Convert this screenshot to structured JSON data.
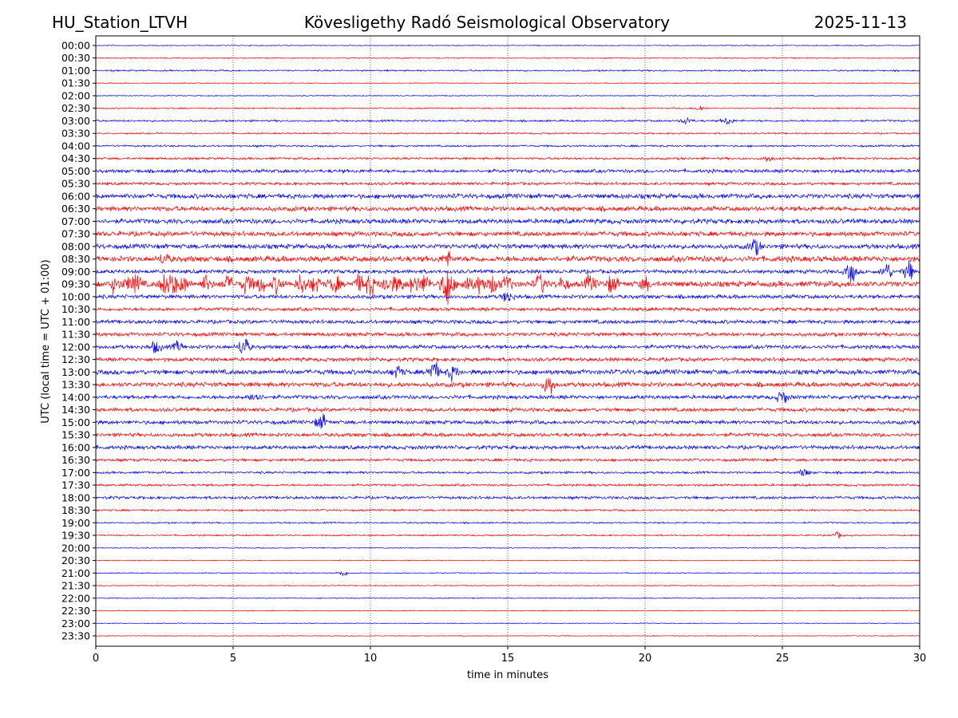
{
  "header": {
    "station": "HU_Station_LTVH",
    "title": "Kövesligethy Radó Seismological Observatory",
    "date": "2025-11-13"
  },
  "chart_data": {
    "type": "line",
    "title": "Kövesligethy Radó Seismological Observatory",
    "xlabel": "time in minutes",
    "ylabel": "UTC (local time = UTC + 01:00)",
    "xlim": [
      0,
      30
    ],
    "xticks": [
      "0",
      "5",
      "10",
      "15",
      "20",
      "25",
      "30"
    ],
    "grid": "vertical dotted at 5-minute ticks",
    "colors": [
      "#0000ff",
      "#ff0000"
    ],
    "rows": [
      "00:00",
      "00:30",
      "01:00",
      "01:30",
      "02:00",
      "02:30",
      "03:00",
      "03:30",
      "04:00",
      "04:30",
      "05:00",
      "05:30",
      "06:00",
      "06:30",
      "07:00",
      "07:30",
      "08:00",
      "08:30",
      "09:00",
      "09:30",
      "10:00",
      "10:30",
      "11:00",
      "11:30",
      "12:00",
      "12:30",
      "13:00",
      "13:30",
      "14:00",
      "14:30",
      "15:00",
      "15:30",
      "16:00",
      "16:30",
      "17:00",
      "17:30",
      "18:00",
      "18:30",
      "19:00",
      "19:30",
      "20:00",
      "20:30",
      "21:00",
      "21:30",
      "22:00",
      "22:30",
      "23:00",
      "23:30"
    ],
    "noise_level": [
      0.5,
      0.6,
      0.8,
      0.5,
      0.5,
      0.7,
      1,
      0.8,
      1,
      1.2,
      1.8,
      1.5,
      2.5,
      2.5,
      2.5,
      2.5,
      2.5,
      3,
      2,
      3,
      2,
      1.8,
      2,
      2,
      2,
      2,
      2.5,
      2.5,
      2,
      2,
      2,
      2,
      2,
      1.5,
      1.2,
      1.2,
      1.5,
      1,
      0.8,
      0.8,
      0.5,
      0.5,
      0.5,
      0.5,
      0.5,
      0.5,
      0.4,
      0.4
    ],
    "events": {
      "02:30": [
        [
          22,
          3
        ]
      ],
      "03:00": [
        [
          21.5,
          4
        ],
        [
          23,
          4
        ]
      ],
      "04:30": [
        [
          24.5,
          3
        ]
      ],
      "08:00": [
        [
          24,
          8
        ]
      ],
      "08:30": [
        [
          2.5,
          5
        ],
        [
          12.8,
          6
        ]
      ],
      "09:00": [
        [
          27.5,
          10
        ],
        [
          28.8,
          9
        ],
        [
          29.6,
          10
        ]
      ],
      "09:30": [
        [
          0.7,
          8
        ],
        [
          1.2,
          7
        ],
        [
          1.5,
          9
        ],
        [
          2.5,
          9
        ],
        [
          2.8,
          10
        ],
        [
          3.2,
          9
        ],
        [
          4,
          7
        ],
        [
          4.8,
          8
        ],
        [
          5.5,
          9
        ],
        [
          6,
          8
        ],
        [
          6.6,
          8
        ],
        [
          7.5,
          9
        ],
        [
          8,
          8
        ],
        [
          8.7,
          9
        ],
        [
          9.6,
          9
        ],
        [
          10,
          10
        ],
        [
          10.6,
          9
        ],
        [
          11,
          8
        ],
        [
          11.6,
          10
        ],
        [
          12,
          9
        ],
        [
          12.8,
          26
        ],
        [
          13.5,
          8
        ],
        [
          14,
          9
        ],
        [
          14.5,
          9
        ],
        [
          15,
          8
        ],
        [
          16.2,
          10
        ],
        [
          17,
          7
        ],
        [
          18,
          8
        ],
        [
          18.8,
          9
        ],
        [
          20,
          6
        ]
      ],
      "10:00": [
        [
          15,
          6
        ]
      ],
      "12:00": [
        [
          2.2,
          6
        ],
        [
          3,
          5
        ],
        [
          5.4,
          11
        ]
      ],
      "13:00": [
        [
          11,
          6
        ],
        [
          12.3,
          12
        ],
        [
          13,
          7
        ]
      ],
      "13:30": [
        [
          16.5,
          10
        ]
      ],
      "14:00": [
        [
          5.8,
          7
        ],
        [
          25,
          7
        ]
      ],
      "15:00": [
        [
          8.2,
          8
        ]
      ],
      "17:00": [
        [
          25.8,
          4
        ]
      ],
      "19:30": [
        [
          27,
          3
        ]
      ],
      "21:00": [
        [
          9,
          3
        ]
      ]
    }
  }
}
